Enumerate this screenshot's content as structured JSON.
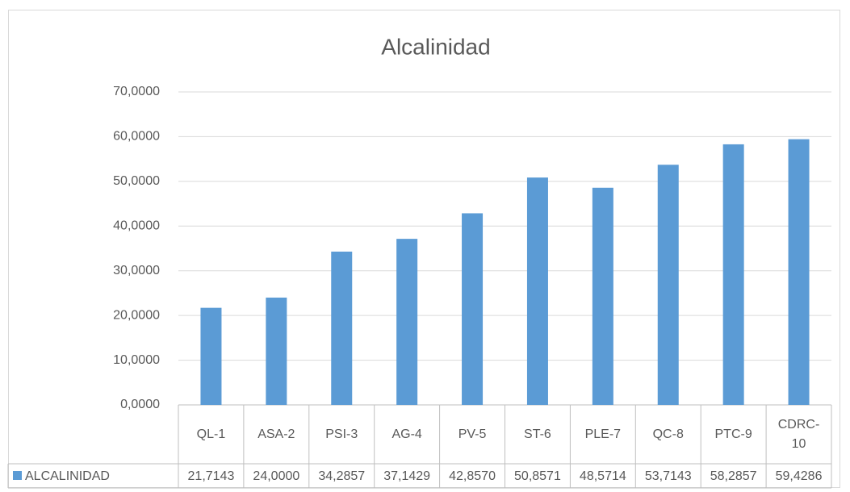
{
  "chart_data": {
    "type": "bar",
    "title": "Alcalinidad",
    "categories": [
      "QL-1",
      "ASA-2",
      "PSI-3",
      "AG-4",
      "PV-5",
      "ST-6",
      "PLE-7",
      "QC-8",
      "PTC-9",
      "CDRC-10"
    ],
    "series": [
      {
        "name": "ALCALINIDAD",
        "color": "#5b9bd5",
        "values": [
          21.7143,
          24.0,
          34.2857,
          37.1429,
          42.857,
          50.8571,
          48.5714,
          53.7143,
          58.2857,
          59.4286
        ],
        "value_labels": [
          "21,7143",
          "24,0000",
          "34,2857",
          "37,1429",
          "42,8570",
          "50,8571",
          "48,5714",
          "53,7143",
          "58,2857",
          "59,4286"
        ]
      }
    ],
    "ylim": [
      0,
      70
    ],
    "yticks": [
      {
        "value": 0,
        "label": "0,0000"
      },
      {
        "value": 10,
        "label": "10,0000"
      },
      {
        "value": 20,
        "label": "20,0000"
      },
      {
        "value": 30,
        "label": "30,0000"
      },
      {
        "value": 40,
        "label": "40,0000"
      },
      {
        "value": 50,
        "label": "50,0000"
      },
      {
        "value": 60,
        "label": "60,0000"
      },
      {
        "value": 70,
        "label": "70,0000"
      }
    ],
    "grid": true
  }
}
